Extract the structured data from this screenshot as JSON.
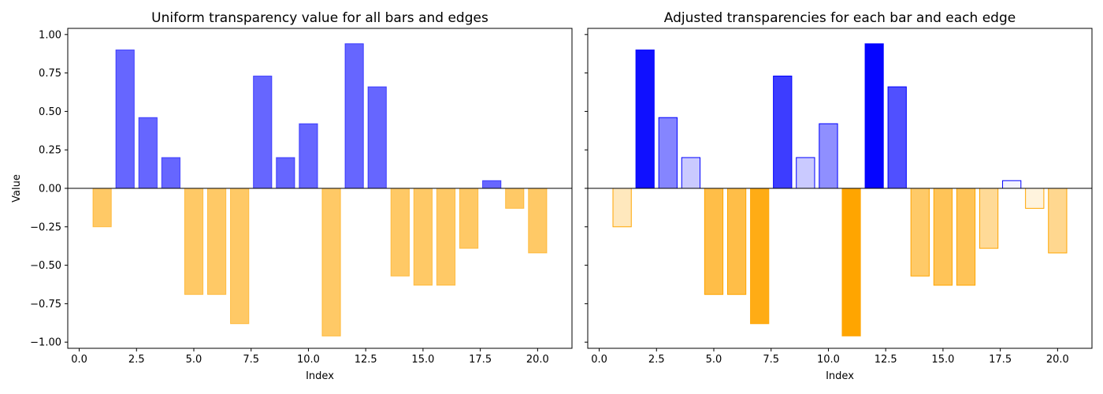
{
  "figure": {
    "y_label": "Value",
    "y_ticks": [
      "1.00",
      "0.75",
      "0.50",
      "0.25",
      "0.00",
      "−0.25",
      "−0.50",
      "−0.75",
      "−1.00"
    ],
    "x_ticks": [
      "0.0",
      "2.5",
      "5.0",
      "7.5",
      "10.0",
      "12.5",
      "15.0",
      "17.5",
      "20.0"
    ]
  },
  "colors": {
    "positive": "#0000ff",
    "negative": "#ffa500"
  },
  "chart_data": [
    {
      "type": "bar",
      "title": "Uniform transparency value for all bars and edges",
      "xlabel": "Index",
      "ylabel": "Value",
      "xlim": [
        -0.5,
        21.5
      ],
      "ylim": [
        -1.04,
        1.04
      ],
      "x_ticks": [
        0,
        2.5,
        5,
        7.5,
        10,
        12.5,
        15,
        17.5,
        20
      ],
      "y_ticks": [
        1.0,
        0.75,
        0.5,
        0.25,
        0.0,
        -0.25,
        -0.5,
        -0.75,
        -1.0
      ],
      "x": [
        1,
        2,
        3,
        4,
        5,
        6,
        7,
        8,
        9,
        10,
        11,
        12,
        13,
        14,
        15,
        16,
        17,
        18,
        19,
        20
      ],
      "values": [
        -0.25,
        0.9,
        0.46,
        0.2,
        -0.69,
        -0.69,
        -0.88,
        0.73,
        0.2,
        0.42,
        -0.96,
        0.94,
        0.66,
        -0.57,
        -0.63,
        -0.63,
        -0.39,
        0.05,
        -0.13,
        -0.42
      ],
      "alpha": "uniform",
      "alpha_value": 0.6
    },
    {
      "type": "bar",
      "title": "Adjusted transparencies for each bar and each edge",
      "xlabel": "Index",
      "ylabel": "",
      "xlim": [
        -0.5,
        21.5
      ],
      "ylim": [
        -1.04,
        1.04
      ],
      "x_ticks": [
        0,
        2.5,
        5,
        7.5,
        10,
        12.5,
        15,
        17.5,
        20
      ],
      "y_ticks": [
        1.0,
        0.75,
        0.5,
        0.25,
        0.0,
        -0.25,
        -0.5,
        -0.75,
        -1.0
      ],
      "x": [
        1,
        2,
        3,
        4,
        5,
        6,
        7,
        8,
        9,
        10,
        11,
        12,
        13,
        14,
        15,
        16,
        17,
        18,
        19,
        20
      ],
      "values": [
        -0.25,
        0.9,
        0.46,
        0.2,
        -0.69,
        -0.69,
        -0.88,
        0.73,
        0.2,
        0.42,
        -0.96,
        0.94,
        0.66,
        -0.57,
        -0.63,
        -0.63,
        -0.39,
        0.05,
        -0.13,
        -0.42
      ],
      "alpha": "proportional to |value|"
    }
  ]
}
